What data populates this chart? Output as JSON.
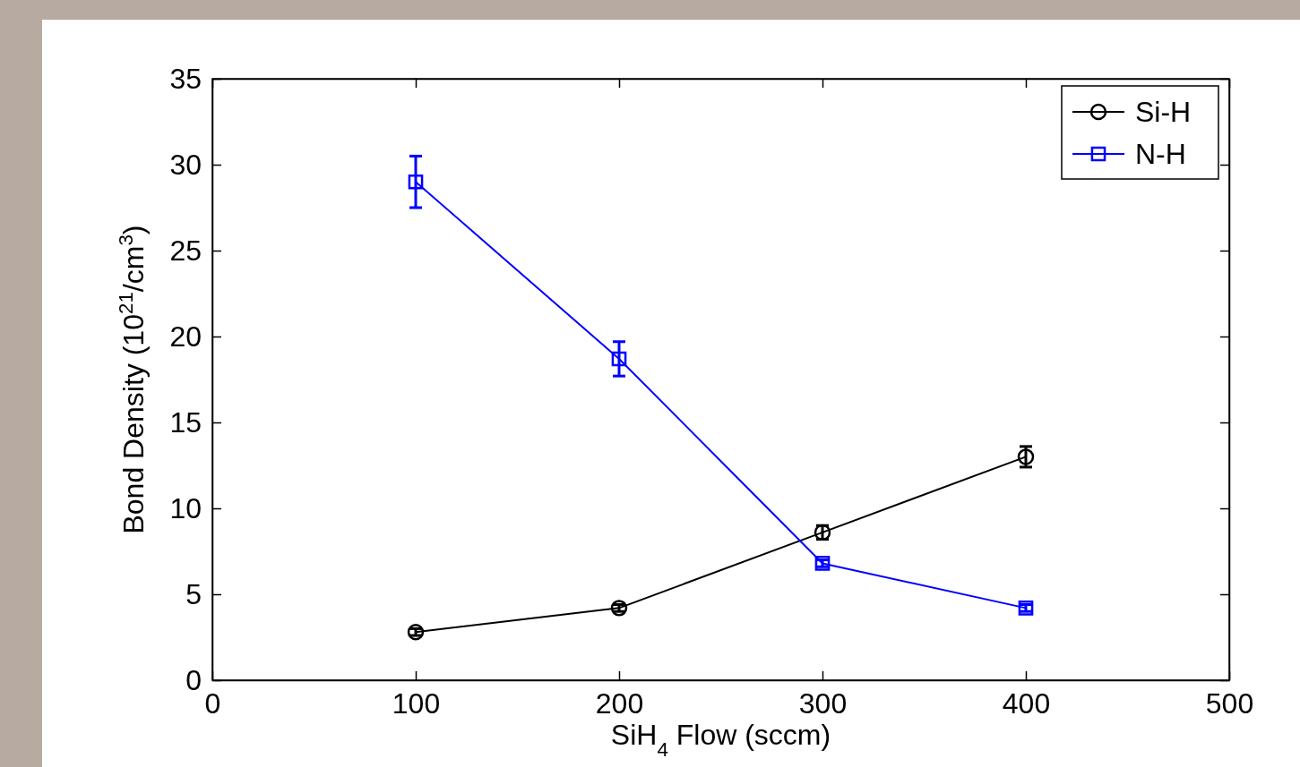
{
  "chart_data": {
    "type": "line",
    "xlabel": "SiH$_{4}$ Flow (sccm)",
    "ylabel": "Bond Density (10$^{21}$/cm$^{3}$)",
    "x": [
      100,
      200,
      300,
      400
    ],
    "series": [
      {
        "name": "Si-H",
        "color": "#000000",
        "marker": "circle",
        "values": [
          2.8,
          4.2,
          8.6,
          13.0
        ],
        "errors": [
          0.2,
          0.2,
          0.4,
          0.6
        ]
      },
      {
        "name": "N-H",
        "color": "#0000ff",
        "marker": "square",
        "values": [
          29,
          18.7,
          6.8,
          4.2
        ],
        "errors": [
          1.5,
          1,
          0.2,
          0.2
        ]
      }
    ],
    "xlim": [
      0,
      500
    ],
    "xticks": [
      0,
      100,
      200,
      300,
      400,
      500
    ],
    "ylim": [
      0,
      35
    ],
    "yticks": [
      0,
      5,
      10,
      15,
      20,
      25,
      30,
      35
    ],
    "grid": false,
    "legend": "top right",
    "line_style": "solid"
  }
}
